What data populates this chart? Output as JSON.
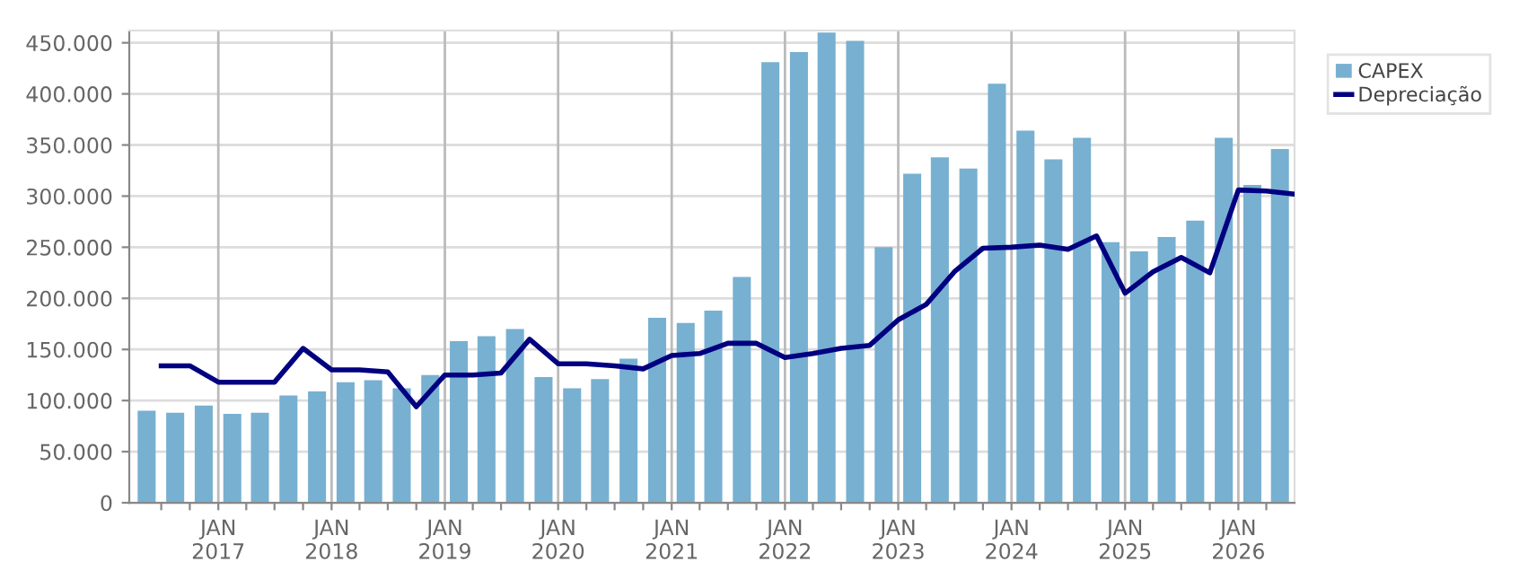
{
  "chart_data": {
    "type": "bar",
    "x": [
      "2016-05-15",
      "2016-08-15",
      "2016-11-15",
      "2017-02-15",
      "2017-05-15",
      "2017-08-15",
      "2017-11-15",
      "2018-02-15",
      "2018-05-15",
      "2018-08-15",
      "2018-11-15",
      "2019-02-15",
      "2019-05-15",
      "2019-08-15",
      "2019-11-15",
      "2020-02-15",
      "2020-05-15",
      "2020-08-15",
      "2020-11-15",
      "2021-02-15",
      "2021-05-15",
      "2021-08-15",
      "2021-11-15",
      "2022-02-15",
      "2022-05-15",
      "2022-08-15",
      "2022-11-15",
      "2023-02-15",
      "2023-05-15",
      "2023-08-15",
      "2023-11-15",
      "2024-02-15",
      "2024-05-15",
      "2024-08-15",
      "2024-11-15",
      "2025-02-15",
      "2025-05-15",
      "2025-08-15",
      "2025-11-15",
      "2026-02-15",
      "2026-05-15"
    ],
    "series": [
      {
        "name": "CAPEX",
        "color": "#77b0d1",
        "values": [
          90000,
          88000,
          95000,
          87000,
          88000,
          105000,
          109000,
          118000,
          120000,
          112000,
          125000,
          158000,
          163000,
          170000,
          123000,
          112000,
          121000,
          141000,
          181000,
          176000,
          188000,
          221000,
          431000,
          441000,
          460000,
          452000,
          250000,
          322000,
          338000,
          327000,
          410000,
          364000,
          336000,
          357000,
          255000,
          246000,
          260000,
          276000,
          357000,
          311000,
          346000
        ]
      },
      {
        "name": "Depreciação",
        "type": "line",
        "color": "#000080",
        "x": [
          "2016-07-01",
          "2016-10-01",
          "2017-01-01",
          "2017-04-01",
          "2017-07-01",
          "2017-10-01",
          "2018-01-01",
          "2018-04-01",
          "2018-07-01",
          "2018-10-01",
          "2019-01-01",
          "2019-04-01",
          "2019-07-01",
          "2019-10-01",
          "2020-01-01",
          "2020-04-01",
          "2020-07-01",
          "2020-10-01",
          "2021-01-01",
          "2021-04-01",
          "2021-07-01",
          "2021-10-01",
          "2022-01-01",
          "2022-04-01",
          "2022-07-01",
          "2022-10-01",
          "2023-01-01",
          "2023-04-01",
          "2023-07-01",
          "2023-10-01",
          "2024-01-01",
          "2024-04-01",
          "2024-07-01",
          "2024-10-01",
          "2025-01-01",
          "2025-04-01",
          "2025-07-01",
          "2025-10-01",
          "2026-01-01",
          "2026-04-01",
          "2026-07-01"
        ],
        "values": [
          134000,
          134000,
          118000,
          118000,
          118000,
          151000,
          130000,
          130000,
          128000,
          94000,
          125000,
          125000,
          127000,
          160000,
          136000,
          136000,
          134000,
          131000,
          144000,
          146000,
          156000,
          156000,
          142000,
          146000,
          151000,
          154000,
          179000,
          194000,
          226000,
          249000,
          250000,
          252000,
          248000,
          261000,
          205000,
          226000,
          240000,
          225000,
          306000,
          305000,
          302000
        ]
      }
    ],
    "xlim": [
      "2016-03-20",
      "2026-07-01"
    ],
    "xticks": [
      {
        "value": "2016-07-01",
        "label": null
      },
      {
        "value": "2016-10-01",
        "label": null
      },
      {
        "value": "2017-01-01",
        "label": "JAN\n2017"
      },
      {
        "value": "2017-04-01",
        "label": null
      },
      {
        "value": "2017-07-01",
        "label": null
      },
      {
        "value": "2017-10-01",
        "label": null
      },
      {
        "value": "2018-01-01",
        "label": "JAN\n2018"
      },
      {
        "value": "2018-04-01",
        "label": null
      },
      {
        "value": "2018-07-01",
        "label": null
      },
      {
        "value": "2018-10-01",
        "label": null
      },
      {
        "value": "2019-01-01",
        "label": "JAN\n2019"
      },
      {
        "value": "2019-04-01",
        "label": null
      },
      {
        "value": "2019-07-01",
        "label": null
      },
      {
        "value": "2019-10-01",
        "label": null
      },
      {
        "value": "2020-01-01",
        "label": "JAN\n2020"
      },
      {
        "value": "2020-04-01",
        "label": null
      },
      {
        "value": "2020-07-01",
        "label": null
      },
      {
        "value": "2020-10-01",
        "label": null
      },
      {
        "value": "2021-01-01",
        "label": "JAN\n2021"
      },
      {
        "value": "2021-04-01",
        "label": null
      },
      {
        "value": "2021-07-01",
        "label": null
      },
      {
        "value": "2021-10-01",
        "label": null
      },
      {
        "value": "2022-01-01",
        "label": "JAN\n2022"
      },
      {
        "value": "2022-04-01",
        "label": null
      },
      {
        "value": "2022-07-01",
        "label": null
      },
      {
        "value": "2022-10-01",
        "label": null
      },
      {
        "value": "2023-01-01",
        "label": "JAN\n2023"
      },
      {
        "value": "2023-04-01",
        "label": null
      },
      {
        "value": "2023-07-01",
        "label": null
      },
      {
        "value": "2023-10-01",
        "label": null
      },
      {
        "value": "2024-01-01",
        "label": "JAN\n2024"
      },
      {
        "value": "2024-04-01",
        "label": null
      },
      {
        "value": "2024-07-01",
        "label": null
      },
      {
        "value": "2024-10-01",
        "label": null
      },
      {
        "value": "2025-01-01",
        "label": "JAN\n2025"
      },
      {
        "value": "2025-04-01",
        "label": null
      },
      {
        "value": "2025-07-01",
        "label": null
      },
      {
        "value": "2025-10-01",
        "label": null
      },
      {
        "value": "2026-01-01",
        "label": "JAN\n2026"
      },
      {
        "value": "2026-04-01",
        "label": null
      }
    ],
    "ylim": [
      0,
      462000
    ],
    "yticks": [
      0,
      {
        "value": 50000,
        "label": "50.000"
      },
      {
        "value": 100000,
        "label": "100.000"
      },
      {
        "value": 150000,
        "label": "150.000"
      },
      {
        "value": 200000,
        "label": "200.000"
      },
      {
        "value": 250000,
        "label": "250.000"
      },
      {
        "value": 300000,
        "label": "300.000"
      },
      {
        "value": 350000,
        "label": "350.000"
      },
      {
        "value": 400000,
        "label": "400.000"
      },
      {
        "value": 450000,
        "label": "450.000"
      }
    ],
    "grid": true,
    "legend": "top right",
    "marker": "none",
    "line_style": "solid"
  }
}
